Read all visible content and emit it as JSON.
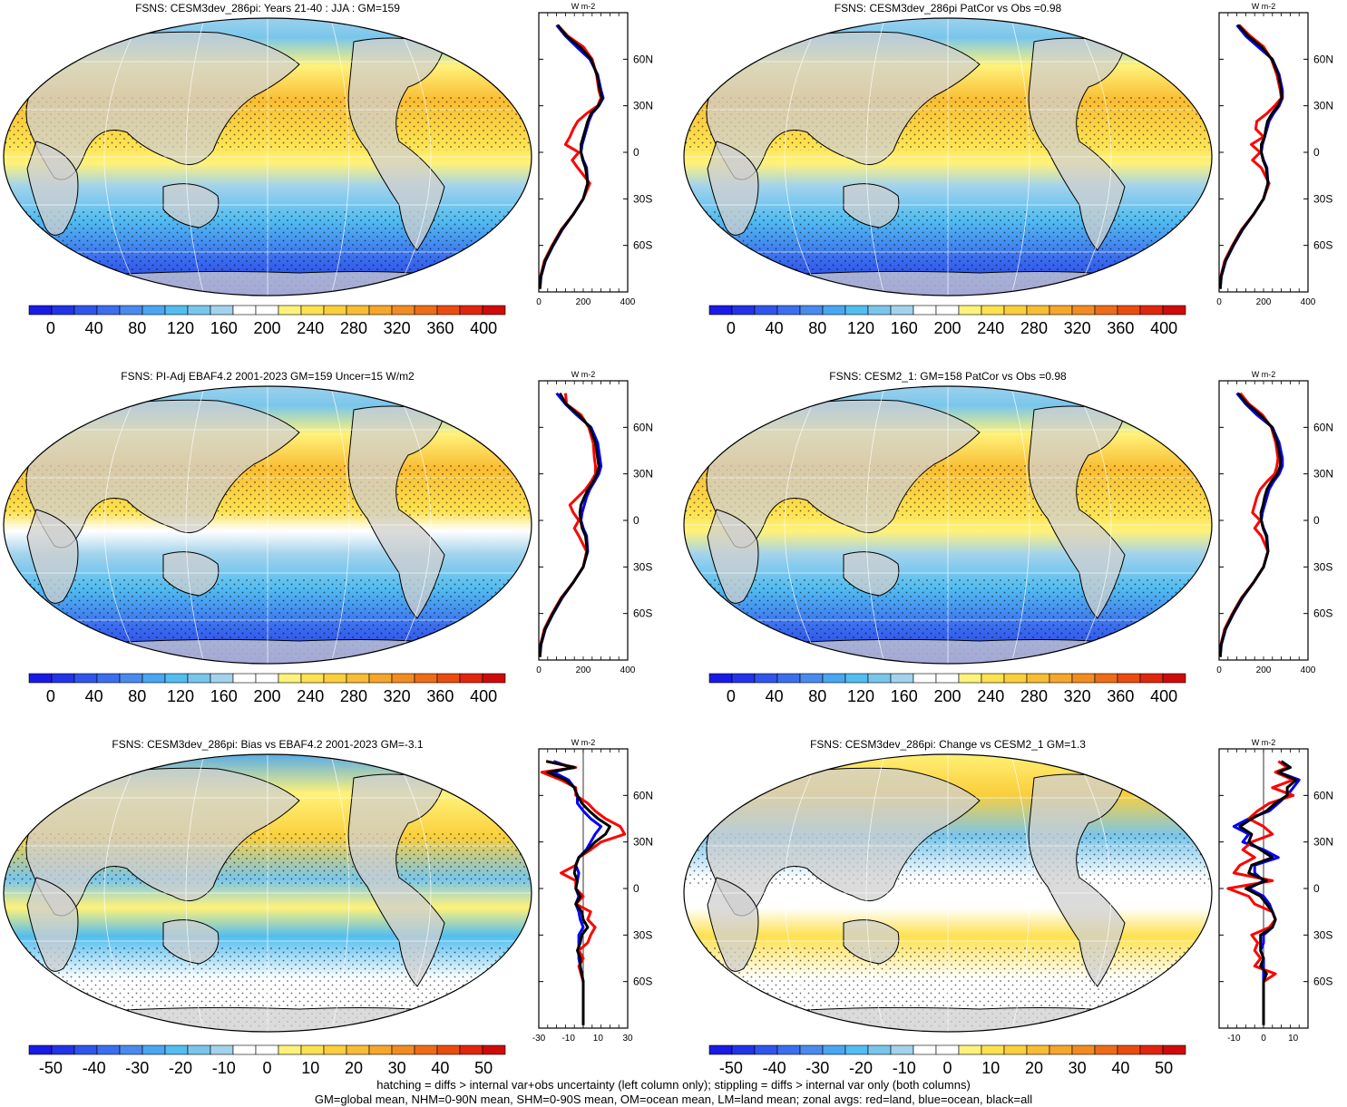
{
  "footer": {
    "line1": "hatching = diffs > internal var+obs uncertainty (left column only); stippling = diffs > internal var only (both columns)",
    "line2": "GM=global mean, NHM=0-90N mean, SHM=0-90S mean, OM=ocean mean, LM=land mean; zonal avgs: red=land, blue=ocean, black=all"
  },
  "colors": {
    "land_line": "#ff0000",
    "ocean_line": "#0000ff",
    "all_line": "#000000",
    "land_mask": "#cfcfcf",
    "full_scale": [
      "#1a1ae6",
      "#2233e8",
      "#2f55ec",
      "#3b6fee",
      "#4a8aee",
      "#49a6f2",
      "#52bdf0",
      "#79c6ec",
      "#a3d3ec",
      "#ffffff",
      "#ffffff",
      "#fff27a",
      "#fde14f",
      "#fbcf3c",
      "#f9bd33",
      "#f6a62a",
      "#f28c20",
      "#ee6c16",
      "#ea4c10",
      "#e0260c",
      "#cf0a0a"
    ],
    "diff_scale": [
      "#1a1ae6",
      "#2233e8",
      "#2f55ec",
      "#3b6fee",
      "#4a8aee",
      "#49a6f2",
      "#52bdf0",
      "#79c6ec",
      "#a3d3ec",
      "#ffffff",
      "#ffffff",
      "#fff27a",
      "#fde14f",
      "#fbcf3c",
      "#f9bd33",
      "#f6a62a",
      "#f28c20",
      "#ee6c16",
      "#ea4c10",
      "#e0260c",
      "#cf0a0a"
    ]
  },
  "units": "W m-2",
  "chart_data": [
    {
      "type": "heatmap",
      "title": "FSNS: CESM3dev_286pi: Years 21-40 : JJA : GM=159",
      "colorbar": {
        "ticks": [
          "0",
          "40",
          "80",
          "120",
          "160",
          "200",
          "240",
          "280",
          "320",
          "360",
          "400"
        ],
        "range": [
          -20,
          420
        ]
      },
      "zonal": {
        "xlim": [
          0,
          400
        ],
        "xticks": [
          "0",
          "200",
          "400"
        ],
        "ylabels": [
          "60N",
          "30N",
          "0",
          "30S",
          "60S"
        ],
        "ylim": [
          -90,
          90
        ],
        "lat": [
          82,
          75,
          68,
          60,
          50,
          40,
          35,
          30,
          25,
          20,
          15,
          10,
          5,
          0,
          -5,
          -10,
          -20,
          -30,
          -40,
          -50,
          -60,
          -70,
          -80,
          -88
        ],
        "land": [
          85,
          130,
          200,
          240,
          260,
          270,
          280,
          265,
          215,
          175,
          155,
          140,
          120,
          180,
          150,
          175,
          230,
          200,
          155,
          100,
          60,
          25,
          8,
          5
        ],
        "ocean": [
          80,
          120,
          170,
          230,
          265,
          280,
          290,
          270,
          240,
          225,
          215,
          205,
          195,
          190,
          200,
          215,
          220,
          200,
          155,
          105,
          65,
          30,
          10,
          5
        ],
        "all": [
          85,
          125,
          185,
          235,
          262,
          275,
          285,
          268,
          235,
          220,
          210,
          200,
          190,
          190,
          198,
          210,
          220,
          200,
          155,
          103,
          63,
          28,
          9,
          5
        ]
      }
    },
    {
      "type": "heatmap",
      "title": "FSNS: CESM3dev_286pi PatCor vs Obs =0.98",
      "colorbar": {
        "ticks": [
          "0",
          "40",
          "80",
          "120",
          "160",
          "200",
          "240",
          "280",
          "320",
          "360",
          "400"
        ],
        "range": [
          -20,
          420
        ]
      },
      "zonal": {
        "xlim": [
          0,
          400
        ],
        "xticks": [
          "0",
          "200",
          "400"
        ],
        "ylabels": [
          "60N",
          "30N",
          "0",
          "30S",
          "60S"
        ],
        "ylim": [
          -90,
          90
        ],
        "lat": [
          82,
          75,
          68,
          60,
          50,
          40,
          35,
          30,
          25,
          20,
          15,
          10,
          5,
          0,
          -5,
          -10,
          -20,
          -30,
          -40,
          -50,
          -60,
          -70,
          -80,
          -88
        ],
        "land": [
          90,
          140,
          200,
          235,
          260,
          275,
          280,
          250,
          215,
          170,
          165,
          200,
          145,
          185,
          150,
          190,
          225,
          200,
          155,
          100,
          60,
          25,
          8,
          5
        ],
        "ocean": [
          80,
          120,
          175,
          240,
          270,
          285,
          285,
          270,
          245,
          225,
          215,
          205,
          195,
          190,
          200,
          215,
          220,
          200,
          155,
          105,
          65,
          30,
          10,
          5
        ],
        "all": [
          85,
          130,
          190,
          238,
          266,
          280,
          282,
          265,
          238,
          218,
          210,
          205,
          190,
          190,
          198,
          212,
          220,
          200,
          155,
          103,
          63,
          28,
          9,
          5
        ]
      }
    },
    {
      "type": "heatmap",
      "title": "FSNS: PI-Adj EBAF4.2 2001-2023 GM=159 Uncer=15 W/m2",
      "colorbar": {
        "ticks": [
          "0",
          "40",
          "80",
          "120",
          "160",
          "200",
          "240",
          "280",
          "320",
          "360",
          "400"
        ],
        "range": [
          -20,
          420
        ]
      },
      "zonal": {
        "xlim": [
          0,
          400
        ],
        "xticks": [
          "0",
          "200",
          "400"
        ],
        "ylabels": [
          "60N",
          "30N",
          "0",
          "30S",
          "60S"
        ],
        "ylim": [
          -90,
          90
        ],
        "lat": [
          82,
          75,
          68,
          60,
          50,
          40,
          35,
          30,
          25,
          20,
          15,
          10,
          5,
          0,
          -5,
          -10,
          -20,
          -30,
          -40,
          -50,
          -60,
          -70,
          -80,
          -88
        ],
        "land": [
          120,
          125,
          190,
          225,
          245,
          250,
          255,
          255,
          235,
          210,
          175,
          140,
          155,
          180,
          160,
          180,
          215,
          200,
          155,
          100,
          60,
          25,
          8,
          5
        ],
        "ocean": [
          80,
          120,
          170,
          235,
          265,
          275,
          280,
          270,
          250,
          230,
          215,
          205,
          195,
          190,
          200,
          215,
          220,
          200,
          155,
          105,
          65,
          30,
          10,
          5
        ],
        "all": [
          95,
          122,
          180,
          230,
          255,
          265,
          270,
          262,
          245,
          222,
          205,
          190,
          185,
          188,
          195,
          210,
          218,
          200,
          155,
          103,
          63,
          28,
          9,
          5
        ]
      }
    },
    {
      "type": "heatmap",
      "title": "FSNS: CESM2_1: GM=158 PatCor vs Obs =0.98",
      "colorbar": {
        "ticks": [
          "0",
          "40",
          "80",
          "120",
          "160",
          "200",
          "240",
          "280",
          "320",
          "360",
          "400"
        ],
        "range": [
          -20,
          420
        ]
      },
      "zonal": {
        "xlim": [
          0,
          400
        ],
        "xticks": [
          "0",
          "200",
          "400"
        ],
        "ylabels": [
          "60N",
          "30N",
          "0",
          "30S",
          "60S"
        ],
        "ylim": [
          -90,
          90
        ],
        "lat": [
          82,
          75,
          68,
          60,
          50,
          40,
          35,
          30,
          25,
          20,
          15,
          10,
          5,
          0,
          -5,
          -10,
          -20,
          -30,
          -40,
          -50,
          -60,
          -70,
          -80,
          -88
        ],
        "land": [
          95,
          135,
          195,
          235,
          255,
          265,
          260,
          250,
          215,
          185,
          170,
          160,
          150,
          185,
          160,
          190,
          220,
          200,
          155,
          100,
          60,
          25,
          8,
          5
        ],
        "ocean": [
          80,
          120,
          170,
          240,
          270,
          285,
          285,
          270,
          245,
          225,
          215,
          205,
          195,
          190,
          200,
          215,
          220,
          200,
          155,
          105,
          65,
          30,
          10,
          5
        ],
        "all": [
          85,
          128,
          185,
          238,
          262,
          275,
          275,
          262,
          235,
          215,
          205,
          198,
          188,
          190,
          198,
          212,
          220,
          200,
          155,
          103,
          63,
          28,
          9,
          5
        ]
      }
    },
    {
      "type": "heatmap",
      "title": "FSNS: CESM3dev_286pi: Bias vs EBAF4.2 2001-2023 GM=-3.1",
      "colorbar": {
        "ticks": [
          "-50",
          "-40",
          "-30",
          "-20",
          "-10",
          "0",
          "10",
          "20",
          "30",
          "40",
          "50"
        ],
        "range": [
          -55,
          55
        ]
      },
      "zonal": {
        "xlim": [
          -30,
          30
        ],
        "xticks": [
          "-30",
          "-10",
          "10",
          "30"
        ],
        "ylabels": [
          "60N",
          "30N",
          "0",
          "30S",
          "60S"
        ],
        "ylim": [
          -90,
          90
        ],
        "lat": [
          82,
          78,
          75,
          70,
          65,
          60,
          55,
          50,
          45,
          40,
          35,
          30,
          25,
          20,
          15,
          10,
          5,
          0,
          -5,
          -10,
          -15,
          -20,
          -25,
          -30,
          -35,
          -40,
          -45,
          -50,
          -60,
          -70,
          -80,
          -88
        ],
        "land": [
          -25,
          -5,
          -28,
          -15,
          -5,
          -5,
          3,
          8,
          15,
          25,
          28,
          12,
          5,
          -3,
          -5,
          -15,
          -5,
          -5,
          0,
          -5,
          5,
          3,
          8,
          5,
          3,
          -3,
          0,
          -3,
          0,
          0,
          0,
          0
        ],
        "ocean": [
          -20,
          -8,
          -20,
          -10,
          -6,
          -4,
          -4,
          0,
          5,
          12,
          8,
          5,
          2,
          -3,
          -5,
          -3,
          -4,
          -5,
          -3,
          -5,
          -3,
          -2,
          0,
          -3,
          -3,
          -3,
          -3,
          -2,
          0,
          0,
          0,
          0
        ],
        "all": [
          -25,
          -6,
          -24,
          -12,
          -6,
          -4,
          -1,
          4,
          10,
          18,
          15,
          8,
          3,
          -3,
          -5,
          -6,
          -4,
          -5,
          -2,
          -5,
          -1,
          0,
          3,
          -1,
          -2,
          -4,
          -2,
          -2,
          0,
          0,
          0,
          0
        ]
      }
    },
    {
      "type": "heatmap",
      "title": "FSNS: CESM3dev_286pi: Change vs CESM2_1 GM=1.3",
      "colorbar": {
        "ticks": [
          "-50",
          "-40",
          "-30",
          "-20",
          "-10",
          "0",
          "10",
          "20",
          "30",
          "40",
          "50"
        ],
        "range": [
          -55,
          55
        ]
      },
      "zonal": {
        "xlim": [
          -15,
          15
        ],
        "xticks": [
          "-10",
          "0",
          "10"
        ],
        "ylabels": [
          "60N",
          "30N",
          "0",
          "30S",
          "60S"
        ],
        "ylim": [
          -90,
          90
        ],
        "lat": [
          82,
          78,
          75,
          70,
          65,
          60,
          55,
          50,
          45,
          40,
          35,
          30,
          25,
          20,
          15,
          10,
          5,
          0,
          -5,
          -10,
          -15,
          -20,
          -25,
          -30,
          -35,
          -40,
          -45,
          -50,
          -55,
          -60,
          -70,
          -80,
          -88
        ],
        "land": [
          5,
          8,
          4,
          10,
          3,
          10,
          2,
          -2,
          -5,
          0,
          3,
          -4,
          -7,
          -3,
          -8,
          -10,
          3,
          -12,
          -5,
          -3,
          3,
          4,
          2,
          -4,
          -2,
          -3,
          -1,
          -3,
          4,
          0,
          0,
          0,
          0
        ],
        "ocean": [
          6,
          9,
          5,
          12,
          10,
          8,
          5,
          2,
          -5,
          -10,
          -5,
          -7,
          0,
          5,
          -3,
          -3,
          0,
          -5,
          0,
          2,
          3,
          4,
          3,
          0,
          0,
          -1,
          0,
          0,
          0,
          0,
          0,
          0,
          0
        ],
        "all": [
          6,
          9,
          5,
          11,
          8,
          8,
          4,
          1,
          -4,
          -8,
          -4,
          -5,
          -1,
          3,
          -4,
          -5,
          1,
          -6,
          -1,
          1,
          3,
          4,
          3,
          -1,
          -1,
          -1,
          0,
          -1,
          1,
          0,
          0,
          0,
          0
        ]
      }
    }
  ]
}
